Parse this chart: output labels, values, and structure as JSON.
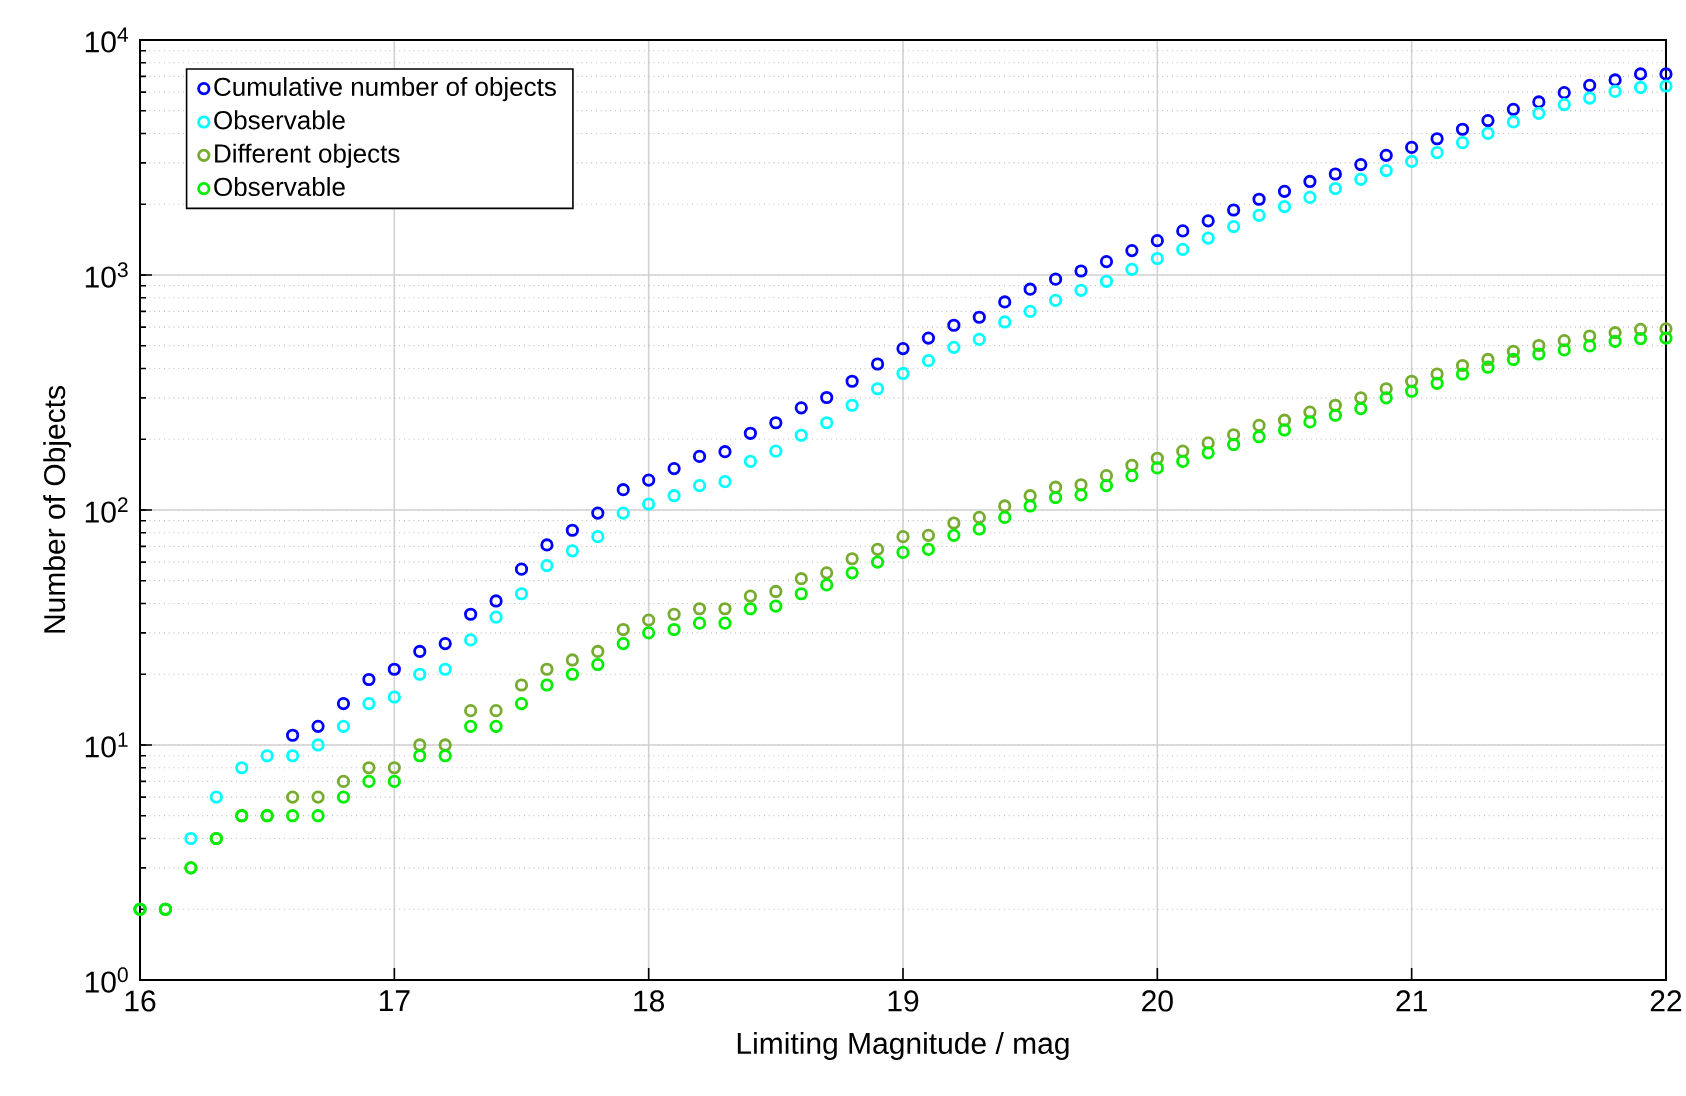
{
  "chart_data": {
    "type": "scatter",
    "xlabel": "Limiting Magnitude / mag",
    "ylabel": "Number of Objects",
    "log": "y",
    "x": [
      16.0,
      16.1,
      16.2,
      16.3,
      16.4,
      16.5,
      16.6,
      16.7,
      16.8,
      16.9,
      17.0,
      17.1,
      17.2,
      17.3,
      17.4,
      17.5,
      17.6,
      17.7,
      17.8,
      17.9,
      18.0,
      18.1,
      18.2,
      18.3,
      18.4,
      18.5,
      18.6,
      18.7,
      18.8,
      18.9,
      19.0,
      19.1,
      19.2,
      19.3,
      19.4,
      19.5,
      19.6,
      19.7,
      19.8,
      19.9,
      20.0,
      20.1,
      20.2,
      20.3,
      20.4,
      20.5,
      20.6,
      20.7,
      20.8,
      20.9,
      21.0,
      21.1,
      21.2,
      21.3,
      21.4,
      21.5,
      21.6,
      21.7,
      21.8,
      21.9,
      22.0
    ],
    "series": [
      {
        "name": "Cumulative number of objects",
        "color": "#0000ff",
        "values": [
          null,
          null,
          null,
          null,
          null,
          null,
          11,
          12,
          15,
          19,
          21,
          25,
          27,
          36,
          41,
          56,
          71,
          82,
          97,
          122,
          134,
          150,
          169,
          177,
          212,
          235,
          272,
          301,
          353,
          418,
          486,
          539,
          611,
          661,
          768,
          870,
          960,
          1040,
          1140,
          1270,
          1400,
          1540,
          1700,
          1890,
          2100,
          2270,
          2500,
          2690,
          2950,
          3230,
          3490,
          3800,
          4170,
          4540,
          5070,
          5450,
          5970,
          6410,
          6760,
          7170,
          7170
        ]
      },
      {
        "name": "Observable",
        "color": "#00ffff",
        "values": [
          2,
          2,
          4,
          6,
          8,
          9,
          9,
          10,
          12,
          15,
          16,
          20,
          21,
          28,
          35,
          44,
          58,
          67,
          77,
          97,
          106,
          115,
          127,
          132,
          161,
          178,
          208,
          235,
          279,
          328,
          381,
          432,
          492,
          532,
          631,
          700,
          780,
          860,
          940,
          1057,
          1175,
          1285,
          1436,
          1607,
          1794,
          1955,
          2138,
          2333,
          2553,
          2782,
          3042,
          3316,
          3656,
          4008,
          4480,
          4874,
          5310,
          5662,
          6040,
          6280,
          6370
        ]
      },
      {
        "name": "Different objects",
        "color": "#77ac30",
        "values": [
          2,
          2,
          3,
          4,
          5,
          5,
          6,
          6,
          7,
          8,
          8,
          10,
          10,
          14,
          14,
          18,
          21,
          23,
          25,
          31,
          34,
          36,
          38,
          38,
          43,
          45,
          51,
          54,
          62,
          68,
          77,
          78,
          88,
          93,
          104,
          115,
          125,
          128,
          140,
          155,
          166,
          178,
          193,
          209,
          229,
          241,
          261,
          279,
          300,
          328,
          353,
          379,
          412,
          437,
          473,
          501,
          526,
          550,
          568,
          587,
          590
        ]
      },
      {
        "name": "Observable",
        "color": "#00ee00",
        "values": [
          2,
          2,
          3,
          4,
          5,
          5,
          5,
          5,
          6,
          7,
          7,
          9,
          9,
          12,
          12,
          15,
          18,
          20,
          22,
          27,
          30,
          31,
          33,
          33,
          38,
          39,
          44,
          48,
          54,
          60,
          66,
          68,
          78,
          83,
          93,
          104,
          113,
          116,
          127,
          140,
          151,
          161,
          175,
          190,
          205,
          219,
          237,
          253,
          270,
          300,
          320,
          346,
          379,
          405,
          437,
          461,
          480,
          499,
          522,
          536,
          539
        ]
      }
    ],
    "xlim": [
      16,
      22
    ],
    "xticks": [
      16,
      17,
      18,
      19,
      20,
      21,
      22
    ],
    "ylim": [
      1,
      10000
    ],
    "yticks": [
      {
        "value": 1,
        "label": "10$^{0}$"
      },
      {
        "value": 10,
        "label": "10$^{1}$"
      },
      {
        "value": 100,
        "label": "10$^{2}$"
      },
      {
        "value": 1000,
        "label": "10$^{3}$"
      },
      {
        "value": 10000,
        "label": "10$^{4}$"
      }
    ],
    "grid": true,
    "legend": "top left",
    "marker": "circle"
  }
}
